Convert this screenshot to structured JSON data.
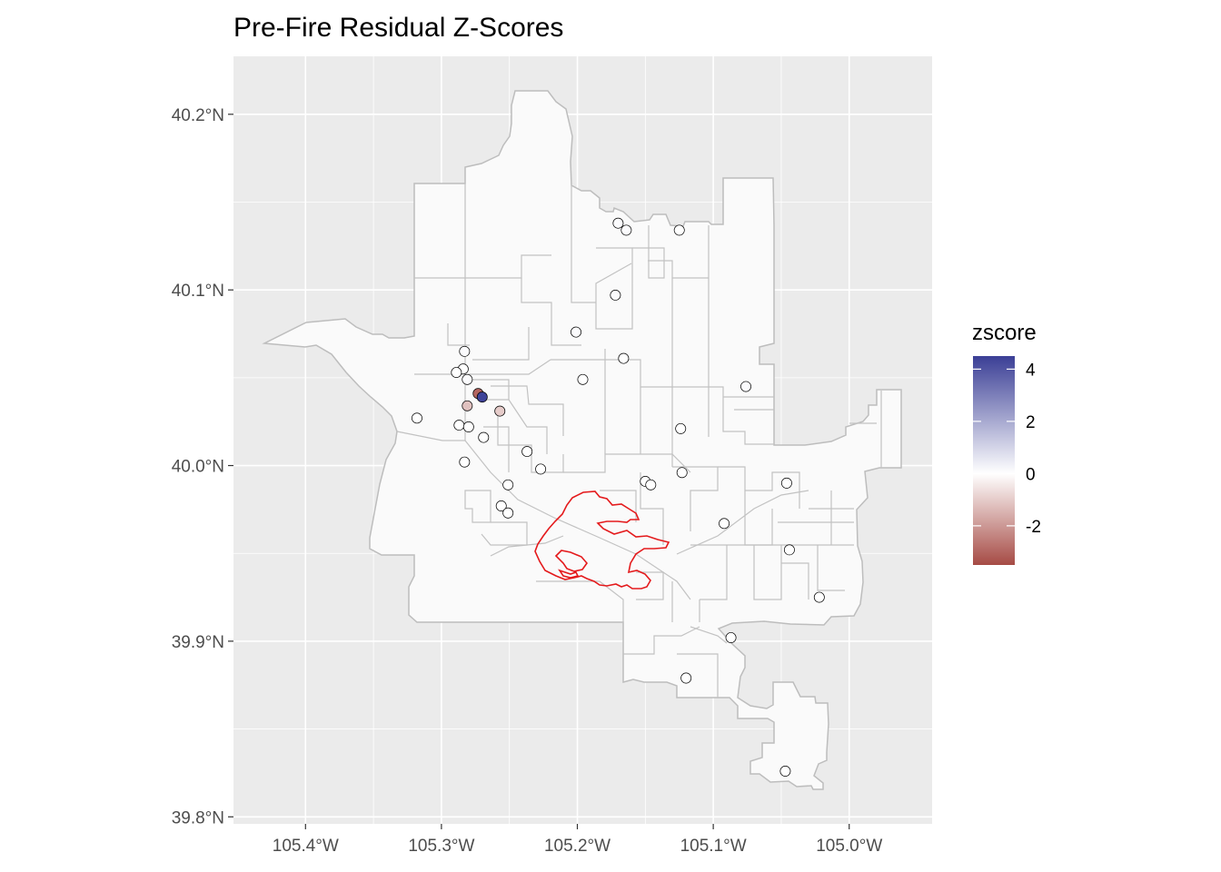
{
  "chart_data": {
    "type": "map",
    "title": "Pre-Fire Residual Z-Scores",
    "x_ticks": [
      "105.4°W",
      "105.3°W",
      "105.2°W",
      "105.1°W",
      "105.0°W"
    ],
    "x_tick_values": [
      -105.4,
      -105.3,
      -105.2,
      -105.1,
      -105.0
    ],
    "y_ticks": [
      "39.8°N",
      "39.9°N",
      "40.0°N",
      "40.1°N",
      "40.2°N"
    ],
    "y_tick_values": [
      39.8,
      39.9,
      40.0,
      40.1,
      40.2
    ],
    "xlim": [
      -105.453,
      -104.939
    ],
    "ylim": [
      39.796,
      40.233
    ],
    "grid": true,
    "panel_background": "#ebebeb",
    "region_fill": "#fafafa",
    "region_stroke": "#bdbdbd",
    "fire_perimeter_color": "#e41a1c",
    "legend": {
      "title": "zscore",
      "placement": "right",
      "labels": [
        "4",
        "2",
        "0",
        "-2"
      ],
      "label_values": [
        4,
        2,
        0,
        -2
      ],
      "range": [
        -3.5,
        4.5
      ],
      "low_color": "#a64b45",
      "mid_color": "#ffffff",
      "high_color": "#3b3f96"
    },
    "points": [
      {
        "lon": -105.17,
        "lat": 40.138,
        "z": 0.1
      },
      {
        "lon": -105.164,
        "lat": 40.134,
        "z": 0.1
      },
      {
        "lon": -105.125,
        "lat": 40.134,
        "z": 0.0
      },
      {
        "lon": -105.172,
        "lat": 40.097,
        "z": 0.1
      },
      {
        "lon": -105.201,
        "lat": 40.076,
        "z": 0.1
      },
      {
        "lon": -105.166,
        "lat": 40.061,
        "z": 0.0
      },
      {
        "lon": -105.196,
        "lat": 40.049,
        "z": 0.0
      },
      {
        "lon": -105.076,
        "lat": 40.045,
        "z": 0.1
      },
      {
        "lon": -105.283,
        "lat": 40.065,
        "z": 0.1
      },
      {
        "lon": -105.284,
        "lat": 40.055,
        "z": 0.0
      },
      {
        "lon": -105.289,
        "lat": 40.053,
        "z": 0.0
      },
      {
        "lon": -105.281,
        "lat": 40.049,
        "z": 0.1
      },
      {
        "lon": -105.273,
        "lat": 40.041,
        "z": -3.0
      },
      {
        "lon": -105.27,
        "lat": 40.039,
        "z": 4.4
      },
      {
        "lon": -105.281,
        "lat": 40.034,
        "z": -1.2
      },
      {
        "lon": -105.257,
        "lat": 40.031,
        "z": -1.0
      },
      {
        "lon": -105.318,
        "lat": 40.027,
        "z": 0.0
      },
      {
        "lon": -105.287,
        "lat": 40.023,
        "z": 0.0
      },
      {
        "lon": -105.28,
        "lat": 40.022,
        "z": 0.0
      },
      {
        "lon": -105.269,
        "lat": 40.016,
        "z": 0.0
      },
      {
        "lon": -105.124,
        "lat": 40.021,
        "z": 0.0
      },
      {
        "lon": -105.237,
        "lat": 40.008,
        "z": 0.0
      },
      {
        "lon": -105.283,
        "lat": 40.002,
        "z": 0.0
      },
      {
        "lon": -105.227,
        "lat": 39.998,
        "z": 0.0
      },
      {
        "lon": -105.123,
        "lat": 39.996,
        "z": 0.0
      },
      {
        "lon": -105.15,
        "lat": 39.991,
        "z": 0.0
      },
      {
        "lon": -105.146,
        "lat": 39.989,
        "z": 0.0
      },
      {
        "lon": -105.251,
        "lat": 39.989,
        "z": 0.0
      },
      {
        "lon": -105.046,
        "lat": 39.99,
        "z": 0.0
      },
      {
        "lon": -105.256,
        "lat": 39.977,
        "z": 0.0
      },
      {
        "lon": -105.251,
        "lat": 39.973,
        "z": 0.0
      },
      {
        "lon": -105.092,
        "lat": 39.967,
        "z": 0.0
      },
      {
        "lon": -105.044,
        "lat": 39.952,
        "z": 0.0
      },
      {
        "lon": -105.022,
        "lat": 39.925,
        "z": 0.0
      },
      {
        "lon": -105.087,
        "lat": 39.902,
        "z": 0.0
      },
      {
        "lon": -105.12,
        "lat": 39.879,
        "z": 0.0
      },
      {
        "lon": -105.047,
        "lat": 39.826,
        "z": 0.0
      }
    ]
  }
}
